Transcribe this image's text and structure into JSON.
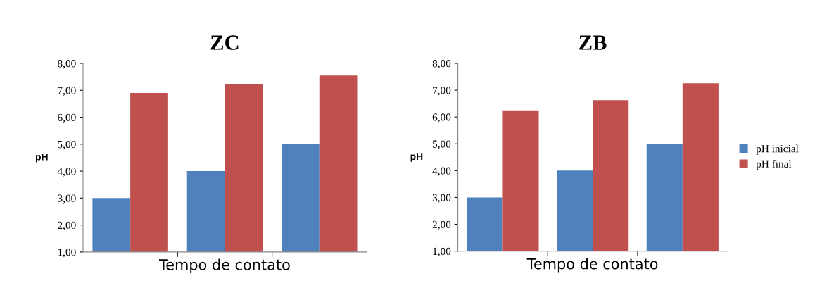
{
  "chart_data": [
    {
      "type": "bar",
      "title": "ZC",
      "ylabel": "pH",
      "xlabel": "Tempo de contato",
      "categories": [
        null,
        null,
        null
      ],
      "series": [
        {
          "color": "#4f81bd",
          "values": [
            3.0,
            4.0,
            5.0
          ]
        },
        {
          "color": "#c0504d",
          "values": [
            6.9,
            7.22,
            7.55
          ]
        }
      ],
      "ylim": [
        1,
        8
      ],
      "yticks": [
        {
          "value": 1,
          "label": "1,00"
        },
        {
          "value": 2,
          "label": "2,00"
        },
        {
          "value": 3,
          "label": "3,00"
        },
        {
          "value": 4,
          "label": "4,00"
        },
        {
          "value": 5,
          "label": "5,00"
        },
        {
          "value": 6,
          "label": "6,00"
        },
        {
          "value": 7,
          "label": "7,00"
        },
        {
          "value": 8,
          "label": "8,00"
        }
      ],
      "tick_labels": "y",
      "grid": false,
      "legend": false
    },
    {
      "type": "bar",
      "title": "ZB",
      "ylabel": "pH",
      "xlabel": "Tempo de contato",
      "categories": [
        null,
        null,
        null
      ],
      "series": [
        {
          "name": "pH inicial",
          "color": "#4f81bd",
          "values": [
            3.0,
            4.0,
            5.0
          ]
        },
        {
          "name": "pH final",
          "color": "#c0504d",
          "values": [
            6.25,
            6.63,
            7.26
          ]
        }
      ],
      "ylim": [
        1,
        8
      ],
      "yticks": [
        {
          "value": 1,
          "label": "1,00"
        },
        {
          "value": 2,
          "label": "2,00"
        },
        {
          "value": 3,
          "label": "3,00"
        },
        {
          "value": 4,
          "label": "4,00"
        },
        {
          "value": 5,
          "label": "5,00"
        },
        {
          "value": 6,
          "label": "6,00"
        },
        {
          "value": 7,
          "label": "7,00"
        },
        {
          "value": 8,
          "label": "8,00"
        }
      ],
      "tick_labels": "y",
      "grid": false,
      "legend": "right"
    }
  ]
}
